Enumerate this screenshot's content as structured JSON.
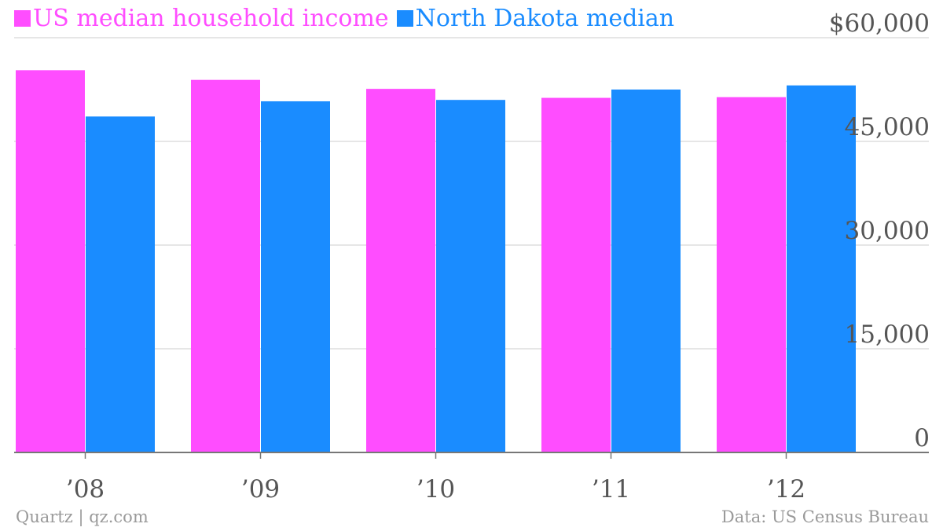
{
  "legend": [
    {
      "label": "US median household income",
      "color": "#ff4dff"
    },
    {
      "label": "North Dakota median",
      "color": "#1a8cff"
    }
  ],
  "footer": {
    "source_left": "Quartz | qz.com",
    "source_right": "Data: US Census Bureau"
  },
  "chart_data": {
    "type": "bar",
    "categories": [
      "’08",
      "’09",
      "’10",
      "’11",
      "’12"
    ],
    "series": [
      {
        "name": "US median household income",
        "color": "#ff4dff",
        "values": [
          55300,
          53900,
          52600,
          51300,
          51400
        ]
      },
      {
        "name": "North Dakota median",
        "color": "#1a8cff",
        "values": [
          48600,
          50800,
          51000,
          52500,
          53100
        ]
      }
    ],
    "ylim": [
      0,
      60000
    ],
    "yticks": [
      0,
      15000,
      30000,
      45000,
      60000
    ],
    "ytick_labels": [
      "0",
      "15,000",
      "30,000",
      "45,000",
      "$60,000"
    ],
    "axis_side": "right",
    "grid": true,
    "legend_position": "top-left"
  }
}
